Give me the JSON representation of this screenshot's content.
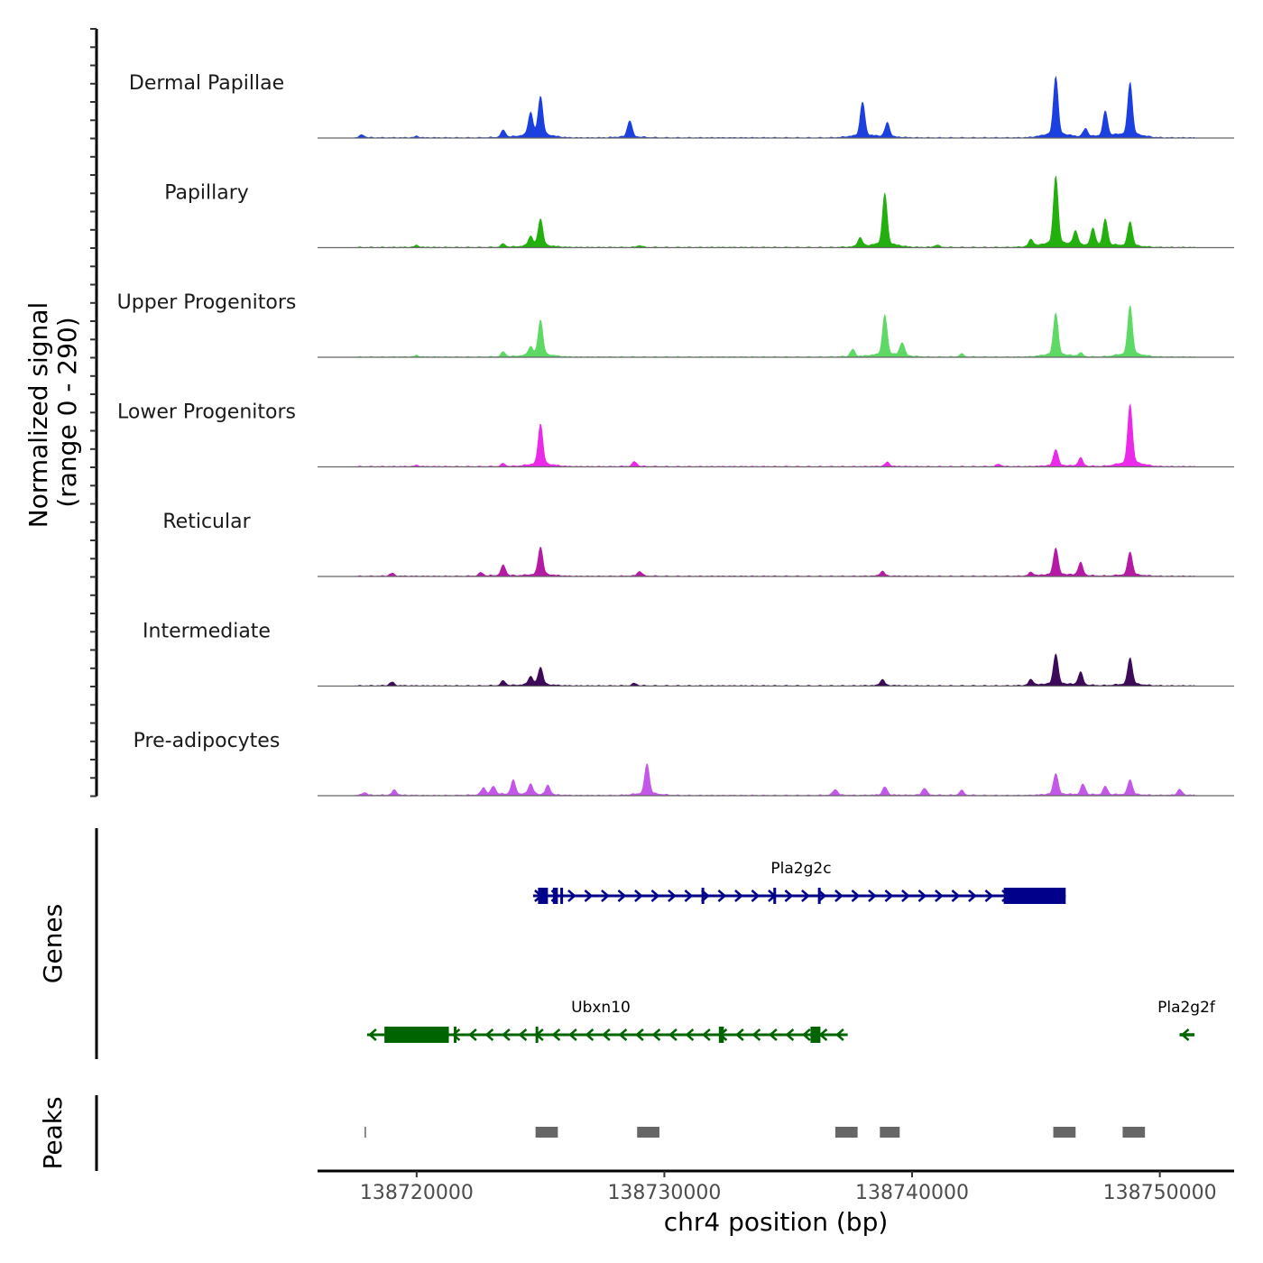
{
  "chart_data": {
    "type": "area",
    "region": {
      "chromosome": "chr4",
      "start": 138716000,
      "end": 138753000
    },
    "y_axis_title": "Normalized signal",
    "y_axis_range_label": "(range 0 - 290)",
    "ylim": [
      0,
      290
    ],
    "x_axis_title": "chr4 position (bp)",
    "x_ticks": [
      {
        "value": 138720000,
        "label": "138720000"
      },
      {
        "value": 138730000,
        "label": "138730000"
      },
      {
        "value": 138740000,
        "label": "138740000"
      },
      {
        "value": 138750000,
        "label": "138750000"
      }
    ],
    "tracks": [
      {
        "name": "Dermal Papillae",
        "color": "#1c3fe0",
        "peaks": [
          [
            138717800,
            12
          ],
          [
            138720000,
            6
          ],
          [
            138723500,
            30
          ],
          [
            138724600,
            95
          ],
          [
            138725000,
            165
          ],
          [
            138728600,
            70
          ],
          [
            138738000,
            145
          ],
          [
            138739000,
            60
          ],
          [
            138745800,
            250
          ],
          [
            138747000,
            35
          ],
          [
            138747800,
            105
          ],
          [
            138748800,
            225
          ]
        ]
      },
      {
        "name": "Papillary",
        "color": "#23b00f",
        "peaks": [
          [
            138720000,
            8
          ],
          [
            138723500,
            14
          ],
          [
            138724600,
            40
          ],
          [
            138725000,
            115
          ],
          [
            138729000,
            8
          ],
          [
            138737900,
            38
          ],
          [
            138738900,
            220
          ],
          [
            138741000,
            10
          ],
          [
            138744800,
            30
          ],
          [
            138745800,
            290
          ],
          [
            138746600,
            60
          ],
          [
            138747300,
            70
          ],
          [
            138747800,
            110
          ],
          [
            138748800,
            105
          ]
        ]
      },
      {
        "name": "Upper Progenitors",
        "color": "#5ed966",
        "peaks": [
          [
            138720000,
            6
          ],
          [
            138723500,
            20
          ],
          [
            138724600,
            35
          ],
          [
            138725000,
            150
          ],
          [
            138737600,
            30
          ],
          [
            138738900,
            170
          ],
          [
            138739600,
            55
          ],
          [
            138742000,
            12
          ],
          [
            138745800,
            180
          ],
          [
            138746800,
            15
          ],
          [
            138748800,
            210
          ]
        ]
      },
      {
        "name": "Lower Progenitors",
        "color": "#ea2ae8",
        "peaks": [
          [
            138720000,
            5
          ],
          [
            138723500,
            12
          ],
          [
            138725000,
            175
          ],
          [
            138728800,
            20
          ],
          [
            138739000,
            18
          ],
          [
            138743500,
            10
          ],
          [
            138745800,
            70
          ],
          [
            138746800,
            35
          ],
          [
            138748800,
            255
          ]
        ]
      },
      {
        "name": "Reticular",
        "color": "#b51aa5",
        "peaks": [
          [
            138719000,
            12
          ],
          [
            138722600,
            14
          ],
          [
            138723500,
            45
          ],
          [
            138725000,
            120
          ],
          [
            138729000,
            20
          ],
          [
            138738800,
            20
          ],
          [
            138744800,
            15
          ],
          [
            138745800,
            115
          ],
          [
            138746800,
            55
          ],
          [
            138748800,
            100
          ]
        ]
      },
      {
        "name": "Intermediate",
        "color": "#3c0a59",
        "peaks": [
          [
            138719000,
            15
          ],
          [
            138723500,
            20
          ],
          [
            138724600,
            35
          ],
          [
            138725000,
            75
          ],
          [
            138728800,
            10
          ],
          [
            138738800,
            25
          ],
          [
            138744800,
            25
          ],
          [
            138745800,
            130
          ],
          [
            138746800,
            55
          ],
          [
            138748800,
            115
          ]
        ]
      },
      {
        "name": "Pre-adipocytes",
        "color": "#c358e8",
        "peaks": [
          [
            138717900,
            12
          ],
          [
            138719100,
            22
          ],
          [
            138722700,
            30
          ],
          [
            138723100,
            35
          ],
          [
            138723900,
            60
          ],
          [
            138724600,
            45
          ],
          [
            138725300,
            40
          ],
          [
            138729300,
            130
          ],
          [
            138736900,
            25
          ],
          [
            138738900,
            35
          ],
          [
            138740500,
            30
          ],
          [
            138742000,
            20
          ],
          [
            138745800,
            90
          ],
          [
            138746900,
            45
          ],
          [
            138747800,
            35
          ],
          [
            138748800,
            65
          ],
          [
            138750800,
            25
          ]
        ]
      }
    ],
    "genes_panel_title": "Genes",
    "genes": [
      {
        "name": "Pla2g2c",
        "strand": "+",
        "color": "#00008b",
        "start": 138724700,
        "end": 138746200,
        "exons": [
          [
            138724900,
            138725300
          ],
          [
            138725500,
            138725700
          ],
          [
            138725800,
            138725900
          ],
          [
            138731500,
            138731600
          ],
          [
            138734400,
            138734500
          ],
          [
            138736200,
            138736300
          ],
          [
            138743700,
            138746200
          ]
        ]
      },
      {
        "name": "Ubxn10",
        "strand": "-",
        "color": "#006400",
        "start": 138718000,
        "end": 138737400,
        "exons": [
          [
            138718700,
            138721300
          ],
          [
            138721500,
            138721600
          ],
          [
            138724800,
            138724900
          ],
          [
            138732200,
            138732400
          ],
          [
            138735900,
            138736300
          ]
        ]
      },
      {
        "name": "Pla2g2f",
        "strand": "-",
        "color": "#006400",
        "start": 138750800,
        "end": 138751400,
        "exons": []
      }
    ],
    "peaks_panel_title": "Peaks",
    "peak_regions": [
      [
        138717900,
        138717950
      ],
      [
        138724800,
        138725700
      ],
      [
        138728900,
        138729800
      ],
      [
        138736900,
        138737800
      ],
      [
        138738700,
        138739500
      ],
      [
        138745700,
        138746600
      ],
      [
        138748500,
        138749400
      ]
    ]
  }
}
